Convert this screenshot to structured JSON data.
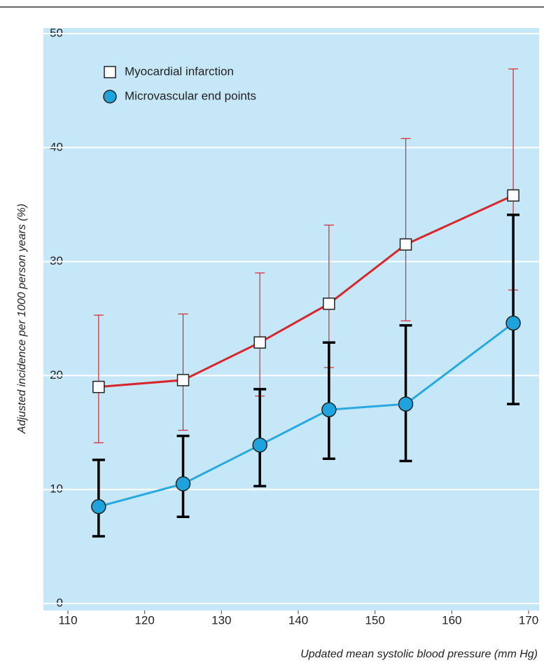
{
  "chart_data": {
    "type": "line",
    "x_label": "Updated mean systolic blood pressure (mm Hg)",
    "y_label": "Adjusted incidence per 1000 person years (%)",
    "x": [
      114,
      125,
      135,
      144,
      154,
      168
    ],
    "series": [
      {
        "name": "Myocardial infarction",
        "color": "#d9262c",
        "marker": "square",
        "marker_fill": "#ffffff",
        "error_color": "#d9262c",
        "values": [
          19.0,
          19.6,
          22.9,
          26.3,
          31.5,
          35.8
        ],
        "lower": [
          14.1,
          15.2,
          18.2,
          20.7,
          24.8,
          27.5
        ],
        "upper": [
          25.3,
          25.4,
          29.0,
          33.2,
          40.8,
          46.9
        ]
      },
      {
        "name": "Microvascular end points",
        "color": "#29a9e0",
        "marker": "circle",
        "marker_fill": "#1fa3dc",
        "error_color": "#000000",
        "values": [
          8.5,
          10.5,
          13.9,
          17.0,
          17.5,
          24.6
        ],
        "lower": [
          5.9,
          7.6,
          10.3,
          12.7,
          12.5,
          17.5
        ],
        "upper": [
          12.6,
          14.7,
          18.8,
          22.9,
          24.4,
          34.1
        ]
      }
    ],
    "xlim": [
      110,
      170
    ],
    "xticks": [
      110,
      120,
      130,
      140,
      150,
      160,
      170
    ],
    "ylim": [
      0,
      50
    ],
    "yticks": [
      0,
      10,
      20,
      30,
      40,
      50
    ],
    "grid": true,
    "background": "#c6e7f7"
  }
}
